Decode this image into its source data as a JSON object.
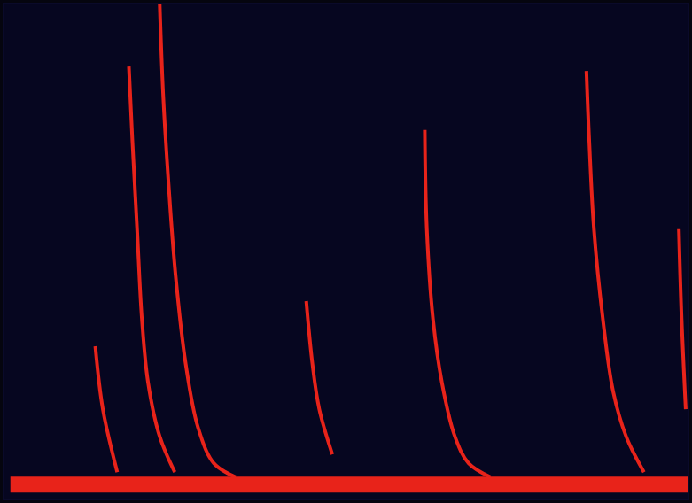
{
  "chart_data": {
    "type": "line",
    "tick_labels": false,
    "grid": false,
    "xlim": [
      0,
      100
    ],
    "ylim": [
      0,
      100
    ],
    "series": [
      {
        "color": "#e8231a",
        "x": [
          22.8,
          23.3,
          24.1,
          25.1,
          26.6,
          28.4,
          30.7,
          33.9
        ],
        "values": [
          100,
          81.8,
          63.6,
          45.5,
          27.3,
          14.5,
          7.3,
          4.5
        ]
      },
      {
        "color": "#e8231a",
        "x": [
          18.3,
          18.8,
          19.5,
          20.2,
          21.1,
          22.8,
          25.0
        ],
        "values": [
          87.3,
          72.7,
          54.5,
          36.4,
          23.6,
          12.7,
          5.5
        ]
      },
      {
        "color": "#e8231a",
        "x": [
          61.5,
          61.8,
          62.7,
          64.0,
          65.9,
          67.9,
          71.1
        ],
        "values": [
          74.5,
          54.5,
          36.4,
          23.6,
          12.7,
          7.3,
          4.5
        ]
      },
      {
        "color": "#e8231a",
        "x": [
          85.1,
          85.5,
          86.2,
          87.5,
          89.0,
          90.9,
          93.5
        ],
        "values": [
          86.4,
          72.7,
          54.5,
          36.4,
          21.8,
          12.7,
          5.5
        ]
      },
      {
        "color": "#e8231a",
        "x": [
          44.2,
          45.1,
          46.1,
          48.0
        ],
        "values": [
          40,
          27.3,
          18.2,
          9.1
        ]
      },
      {
        "color": "#e8231a",
        "x": [
          98.6,
          99.0,
          99.6
        ],
        "values": [
          54.5,
          36.4,
          18.2
        ]
      },
      {
        "color": "#e8231a",
        "x": [
          13.4,
          14.5,
          16.6
        ],
        "values": [
          30.9,
          18.2,
          5.5
        ]
      },
      {
        "color": "#e8231a",
        "x": [
          1,
          100
        ],
        "values": [
          3,
          3
        ]
      }
    ]
  }
}
